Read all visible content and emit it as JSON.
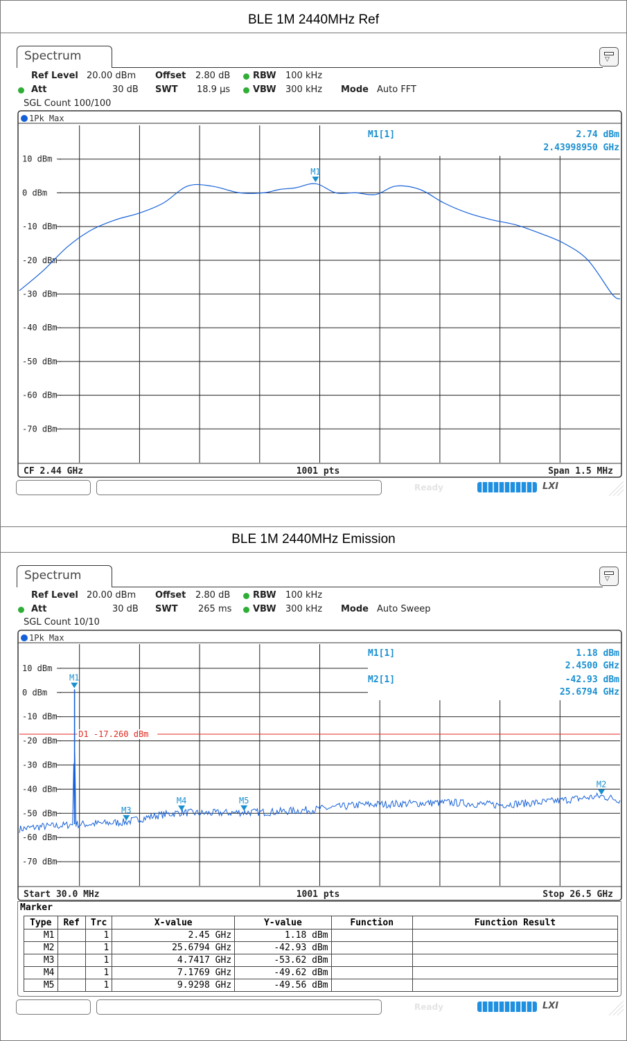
{
  "sections": [
    {
      "title": "BLE 1M 2440MHz Ref",
      "tab": "Spectrum",
      "header": {
        "ref_level_label": "Ref Level",
        "ref_level_value": "20.00 dBm",
        "offset_label": "Offset",
        "offset_value": "2.80 dB",
        "rbw_label": "RBW",
        "rbw_value": "100 kHz",
        "att_label": "Att",
        "att_value": "30 dB",
        "swt_label": "SWT",
        "swt_value": "18.9 µs",
        "vbw_label": "VBW",
        "vbw_value": "300 kHz",
        "mode_label": "Mode",
        "mode_value": "Auto FFT",
        "count": "SGL Count 100/100"
      },
      "trace_label": "1Pk Max",
      "footer": {
        "left": "CF 2.44 GHz",
        "center": "1001 pts",
        "right": "Span 1.5 MHz"
      },
      "marker_readouts": [
        {
          "name": "M1[1]",
          "value1": "2.74 dBm",
          "value2": "2.43998950 GHz"
        }
      ]
    },
    {
      "title": "BLE 1M 2440MHz Emission",
      "tab": "Spectrum",
      "header": {
        "ref_level_label": "Ref Level",
        "ref_level_value": "20.00 dBm",
        "offset_label": "Offset",
        "offset_value": "2.80 dB",
        "rbw_label": "RBW",
        "rbw_value": "100 kHz",
        "att_label": "Att",
        "att_value": "30 dB",
        "swt_label": "SWT",
        "swt_value": "265 ms",
        "vbw_label": "VBW",
        "vbw_value": "300 kHz",
        "mode_label": "Mode",
        "mode_value": "Auto Sweep",
        "count": "SGL Count 10/10"
      },
      "trace_label": "1Pk Max",
      "footer": {
        "left": "Start 30.0 MHz",
        "center": "1001 pts",
        "right": "Stop 26.5 GHz"
      },
      "marker_readouts": [
        {
          "name": "M1[1]",
          "value1": "1.18 dBm",
          "value2": "2.4500 GHz"
        },
        {
          "name": "M2[1]",
          "value1": "-42.93 dBm",
          "value2": "25.6794 GHz"
        }
      ],
      "marker_table": {
        "title": "Marker",
        "columns": [
          "Type",
          "Ref",
          "Trc",
          "X-value",
          "Y-value",
          "Function",
          "Function Result"
        ],
        "rows": [
          [
            "M1",
            "",
            "1",
            "2.45 GHz",
            "1.18 dBm",
            "",
            ""
          ],
          [
            "M2",
            "",
            "1",
            "25.6794 GHz",
            "-42.93 dBm",
            "",
            ""
          ],
          [
            "M3",
            "",
            "1",
            "4.7417 GHz",
            "-53.62 dBm",
            "",
            ""
          ],
          [
            "M4",
            "",
            "1",
            "7.1769 GHz",
            "-49.62 dBm",
            "",
            ""
          ],
          [
            "M5",
            "",
            "1",
            "9.9298 GHz",
            "-49.56 dBm",
            "",
            ""
          ]
        ]
      }
    }
  ],
  "status_text": "Ready",
  "status_logo": "LXI",
  "colors": {
    "trace": "#1560d8",
    "marker": "#1a8fd0",
    "limit_line": "#e0281e",
    "readout": "#1a8fd0"
  },
  "chart_data": [
    {
      "type": "line",
      "title": "BLE 1M 2440MHz Ref",
      "x_unit": "GHz",
      "xlim": [
        2.43925,
        2.44075
      ],
      "ylim": [
        -80,
        20
      ],
      "yticks": [
        10,
        0,
        -10,
        -20,
        -30,
        -40,
        -50,
        -60,
        -70
      ],
      "ytick_labels": [
        "10 dBm",
        "0 dBm",
        "-10 dBm",
        "-20 dBm",
        "-30 dBm",
        "-40 dBm",
        "-50 dBm",
        "-60 dBm",
        "-70 dBm"
      ],
      "grid": true,
      "series": [
        {
          "x": [
            2.43925,
            2.43931,
            2.43937,
            2.43943,
            2.43949,
            2.43955,
            2.43961,
            2.43967,
            2.43973,
            2.4398,
            2.43986,
            2.4399,
            2.43994,
            2.43999,
            2.44004,
            2.44009,
            2.44014,
            2.44019,
            2.44025,
            2.44031,
            2.44037,
            2.44043,
            2.44049,
            2.44055,
            2.44061,
            2.44067,
            2.44073,
            2.44075
          ],
          "y": [
            -29,
            -23,
            -16,
            -11,
            -8,
            -6,
            -3,
            2,
            2,
            0,
            0,
            1,
            1.5,
            2.7,
            0,
            0,
            -0.5,
            2,
            1,
            -3,
            -6,
            -8,
            -9.5,
            -12,
            -15,
            -20,
            -30,
            -31.5
          ]
        }
      ],
      "markers": [
        {
          "name": "M1",
          "x": 2.4399895,
          "y": 2.74
        }
      ]
    },
    {
      "type": "line",
      "title": "BLE 1M 2440MHz Emission",
      "x_unit": "GHz",
      "xlim": [
        0.03,
        26.5
      ],
      "ylim": [
        -80,
        20
      ],
      "yticks": [
        10,
        0,
        -10,
        -20,
        -30,
        -40,
        -50,
        -60,
        -70
      ],
      "ytick_labels": [
        "10 dBm",
        "0 dBm",
        "-10 dBm",
        "-20 dBm",
        "-30 dBm",
        "-40 dBm",
        "-50 dBm",
        "-60 dBm",
        "-70 dBm"
      ],
      "grid": true,
      "limit_line": {
        "label": "D1 -17.260 dBm",
        "y": -17.26
      },
      "series": [
        {
          "x": [
            0.03,
            1.0,
            2.0,
            2.4,
            2.45,
            2.5,
            3.0,
            4.74,
            6.0,
            7.18,
            8.0,
            9.93,
            11.0,
            13.0,
            15.0,
            17.0,
            19.0,
            21.0,
            23.0,
            25.68,
            26.5
          ],
          "y": [
            -56.5,
            -55.5,
            -55.0,
            -54.5,
            1.18,
            -54.5,
            -54.5,
            -53.6,
            -51.0,
            -49.6,
            -50.0,
            -49.6,
            -49.5,
            -48.5,
            -46.5,
            -46.0,
            -45.5,
            -46.5,
            -45.5,
            -42.9,
            -44.5
          ]
        }
      ],
      "markers": [
        {
          "name": "M1",
          "x": 2.45,
          "y": 1.18
        },
        {
          "name": "M2",
          "x": 25.6794,
          "y": -42.93
        },
        {
          "name": "M3",
          "x": 4.7417,
          "y": -53.62
        },
        {
          "name": "M4",
          "x": 7.1769,
          "y": -49.62
        },
        {
          "name": "M5",
          "x": 9.9298,
          "y": -49.56
        }
      ]
    }
  ]
}
